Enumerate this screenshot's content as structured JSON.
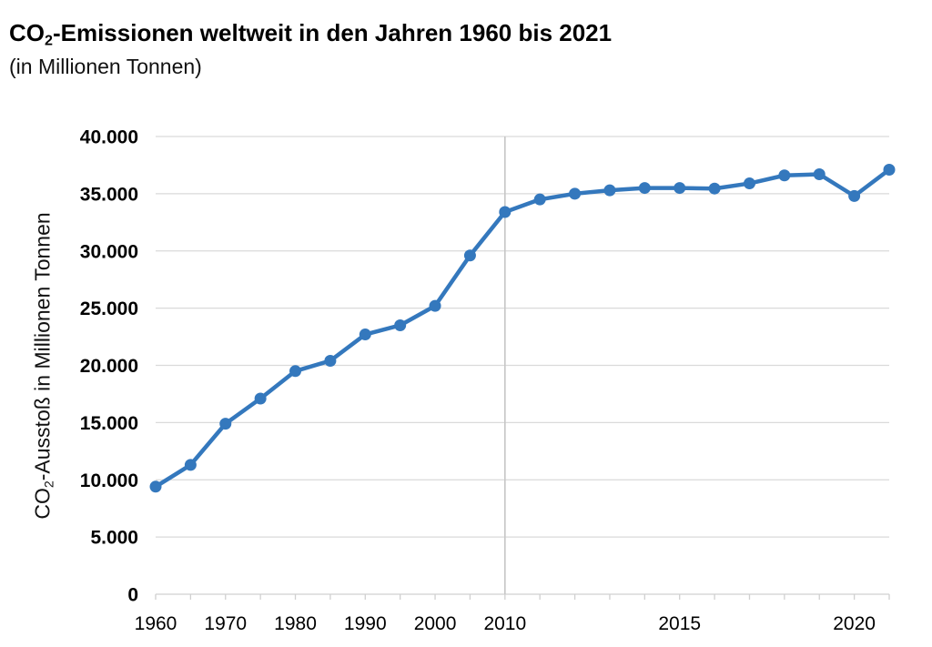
{
  "chart_data": {
    "type": "line",
    "title": "CO2-Emissionen weltweit in den Jahren 1960 bis 2021",
    "title_parts": {
      "prefix": "CO",
      "sub": "2",
      "rest": "-Emissionen weltweit in den Jahren 1960 bis 2021"
    },
    "subtitle": "(in Millionen Tonnen)",
    "ylabel": "CO2-Ausstoß in Millionen Tonnen",
    "ylabel_parts": {
      "prefix": "CO",
      "sub": "2",
      "rest": "-Ausstoß in Millionen Tonnen"
    },
    "categories": [
      "1960",
      "1965",
      "1970",
      "1975",
      "1980",
      "1985",
      "1990",
      "1995",
      "2000",
      "2005",
      "2010",
      "2011",
      "2012",
      "2013",
      "2014",
      "2015",
      "2016",
      "2017",
      "2018",
      "2019",
      "2020",
      "2021"
    ],
    "values": [
      9400,
      11300,
      14900,
      17100,
      19500,
      20400,
      22700,
      23500,
      25200,
      29600,
      33400,
      34500,
      35000,
      35300,
      35500,
      35500,
      35450,
      35900,
      36600,
      36700,
      34800,
      37100
    ],
    "ylim": [
      0,
      40000
    ],
    "ytick_interval": 5000,
    "ytick_labels": [
      "0",
      "5.000",
      "10.000",
      "15.000",
      "20.000",
      "25.000",
      "30.000",
      "35.000",
      "40.000"
    ],
    "xtick_labels_shown": [
      "1960",
      "1970",
      "1980",
      "1990",
      "2000",
      "2010",
      "2015",
      "2020"
    ],
    "separator_category": "2010",
    "grid": "horizontal",
    "legend": "none",
    "colors": {
      "line": "#3478BD",
      "marker": "#3478BD",
      "gridline": "#DADADA",
      "axis": "#D0D0D0",
      "separator": "#C6C6C6",
      "tick_text": "#000000"
    }
  }
}
